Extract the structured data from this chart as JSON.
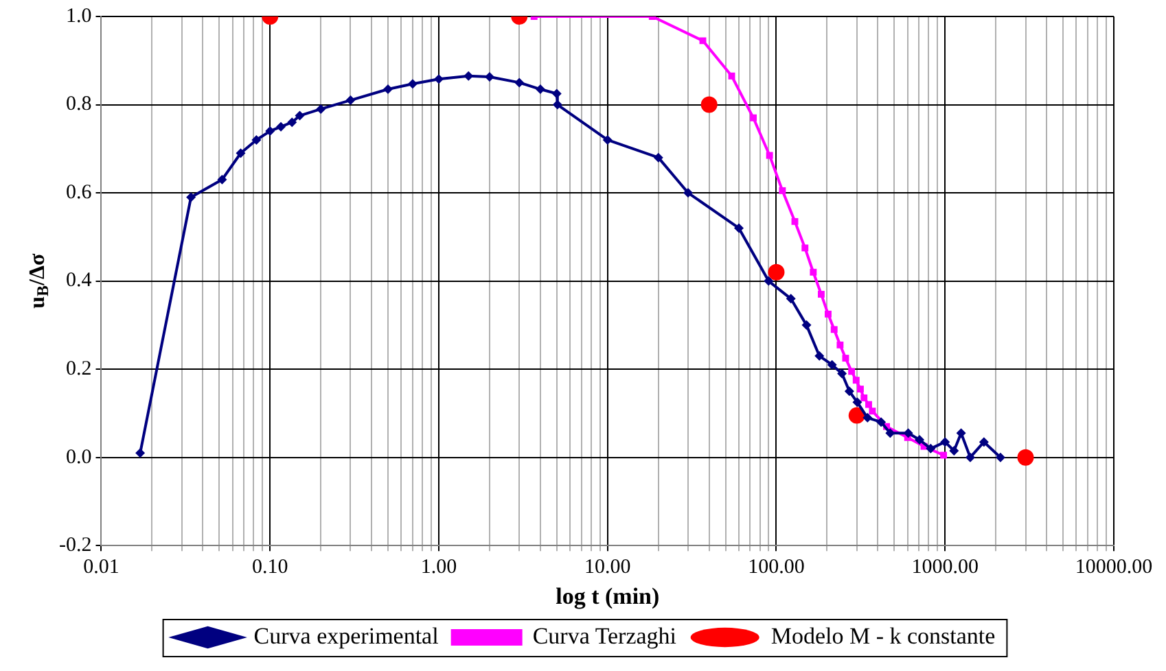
{
  "chart_data": {
    "type": "line",
    "xlabel": "log t (min)",
    "ylabel": "u$_{B}$/Δσ",
    "log": "x",
    "grid": true,
    "legend": "bottom",
    "xlim": [
      0.01,
      10000
    ],
    "ylim": [
      -0.2,
      1.0
    ],
    "xticks": [
      {
        "value": 0.01,
        "label": "0.01"
      },
      {
        "value": 0.02,
        "label": null
      },
      {
        "value": 0.03,
        "label": null
      },
      {
        "value": 0.04,
        "label": null
      },
      {
        "value": 0.05,
        "label": null
      },
      {
        "value": 0.06,
        "label": null
      },
      {
        "value": 0.07,
        "label": null
      },
      {
        "value": 0.08,
        "label": null
      },
      {
        "value": 0.09,
        "label": null
      },
      {
        "value": 0.1,
        "label": "0.10"
      },
      {
        "value": 0.2,
        "label": null
      },
      {
        "value": 0.3,
        "label": null
      },
      {
        "value": 0.4,
        "label": null
      },
      {
        "value": 0.5,
        "label": null
      },
      {
        "value": 0.6,
        "label": null
      },
      {
        "value": 0.7,
        "label": null
      },
      {
        "value": 0.8,
        "label": null
      },
      {
        "value": 0.9,
        "label": null
      },
      {
        "value": 1,
        "label": "1.00"
      },
      {
        "value": 2,
        "label": null
      },
      {
        "value": 3,
        "label": null
      },
      {
        "value": 4,
        "label": null
      },
      {
        "value": 5,
        "label": null
      },
      {
        "value": 6,
        "label": null
      },
      {
        "value": 7,
        "label": null
      },
      {
        "value": 8,
        "label": null
      },
      {
        "value": 9,
        "label": null
      },
      {
        "value": 10,
        "label": "10.00"
      },
      {
        "value": 20,
        "label": null
      },
      {
        "value": 30,
        "label": null
      },
      {
        "value": 40,
        "label": null
      },
      {
        "value": 50,
        "label": null
      },
      {
        "value": 60,
        "label": null
      },
      {
        "value": 70,
        "label": null
      },
      {
        "value": 80,
        "label": null
      },
      {
        "value": 90,
        "label": null
      },
      {
        "value": 100,
        "label": "100.00"
      },
      {
        "value": 200,
        "label": null
      },
      {
        "value": 300,
        "label": null
      },
      {
        "value": 400,
        "label": null
      },
      {
        "value": 500,
        "label": null
      },
      {
        "value": 600,
        "label": null
      },
      {
        "value": 700,
        "label": null
      },
      {
        "value": 800,
        "label": null
      },
      {
        "value": 900,
        "label": null
      },
      {
        "value": 1000,
        "label": "1000.00"
      },
      {
        "value": 2000,
        "label": null
      },
      {
        "value": 3000,
        "label": null
      },
      {
        "value": 4000,
        "label": null
      },
      {
        "value": 5000,
        "label": null
      },
      {
        "value": 6000,
        "label": null
      },
      {
        "value": 7000,
        "label": null
      },
      {
        "value": 8000,
        "label": null
      },
      {
        "value": 9000,
        "label": null
      },
      {
        "value": 10000,
        "label": "10000.00"
      }
    ],
    "yticks": [
      {
        "value": -0.2,
        "label": "-0.2"
      },
      {
        "value": 0,
        "label": "0.0"
      },
      {
        "value": 0.2,
        "label": "0.2"
      },
      {
        "value": 0.4,
        "label": "0.4"
      },
      {
        "value": 0.6,
        "label": "0.6"
      },
      {
        "value": 0.8,
        "label": "0.8"
      },
      {
        "value": 1.0,
        "label": "1.0"
      }
    ],
    "series": [
      {
        "name": "Curva experimental",
        "type": "line",
        "marker": "diamond",
        "color": "#000080",
        "x": [
          0.017,
          0.034,
          0.052,
          0.067,
          0.083,
          0.1,
          0.116,
          0.135,
          0.15,
          0.2,
          0.3,
          0.5,
          0.7,
          1.0,
          1.5,
          2.0,
          3.0,
          4.0,
          5.0,
          5.05,
          10,
          20,
          30,
          60,
          90,
          122,
          151,
          180,
          214,
          245,
          271,
          302,
          347,
          418,
          473,
          605,
          706,
          822,
          1000,
          1130,
          1245,
          1410,
          1700,
          2130
        ],
        "values": [
          0.01,
          0.59,
          0.63,
          0.69,
          0.72,
          0.74,
          0.75,
          0.76,
          0.775,
          0.79,
          0.81,
          0.835,
          0.847,
          0.858,
          0.865,
          0.863,
          0.85,
          0.835,
          0.825,
          0.8,
          0.72,
          0.68,
          0.6,
          0.52,
          0.4,
          0.36,
          0.3,
          0.23,
          0.21,
          0.19,
          0.15,
          0.125,
          0.09,
          0.08,
          0.055,
          0.055,
          0.04,
          0.02,
          0.035,
          0.015,
          0.055,
          0.0,
          0.035,
          0.0
        ]
      },
      {
        "name": "Curva Terzaghi",
        "type": "line",
        "marker": "square",
        "color": "#ff00ff",
        "x": [
          3.67,
          18.4,
          36.7,
          54.4,
          73.1,
          91.2,
          108.7,
          128.8,
          147.9,
          165.6,
          184.6,
          202.8,
          220.2,
          238.8,
          257.5,
          279.4,
          297.3,
          315,
          331,
          352.6,
          371,
          450,
          600,
          750,
          980
        ],
        "values": [
          1.0,
          1.0,
          0.945,
          0.865,
          0.77,
          0.685,
          0.605,
          0.535,
          0.475,
          0.42,
          0.37,
          0.325,
          0.29,
          0.255,
          0.225,
          0.195,
          0.175,
          0.155,
          0.135,
          0.12,
          0.105,
          0.07,
          0.045,
          0.025,
          0.005
        ]
      },
      {
        "name": "Modelo M - k constante",
        "type": "scatter",
        "marker": "circle",
        "color": "#ff0000",
        "x": [
          0.1,
          3,
          40,
          100,
          300,
          3000
        ],
        "values": [
          1.0,
          1.0,
          0.8,
          0.42,
          0.095,
          0.0
        ]
      }
    ]
  }
}
